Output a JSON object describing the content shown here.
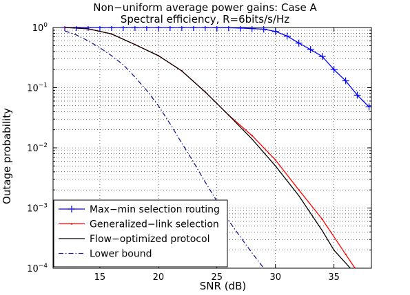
{
  "chart_data": {
    "type": "line",
    "title": "Non−uniform average power gains: Case A",
    "subtitle": "Spectral efficiency, R=6bits/s/Hz",
    "xlabel": "SNR (dB)",
    "ylabel": "Outage probability",
    "xlim": [
      11,
      38.2
    ],
    "ylim": [
      0.0001,
      1
    ],
    "yscale": "log",
    "grid": true,
    "legend_position": "bottom-left",
    "x_ticks": [
      15,
      20,
      25,
      30,
      35
    ],
    "x_tick_labels": [
      "15",
      "20",
      "25",
      "30",
      "35"
    ],
    "y_ticks": [
      0.0001,
      0.001,
      0.01,
      0.1,
      1
    ],
    "y_tick_labels": [
      {
        "base": "10",
        "exp": "−4"
      },
      {
        "base": "10",
        "exp": "−3"
      },
      {
        "base": "10",
        "exp": "−2"
      },
      {
        "base": "10",
        "exp": "−1"
      },
      {
        "base": "10",
        "exp": "0"
      }
    ],
    "series": [
      {
        "name": "Max−min selection routing",
        "color": "#0000ff",
        "line_style": "solid",
        "marker": "plus",
        "x": [
          12,
          13,
          14,
          15,
          16,
          17,
          18,
          19,
          20,
          21,
          22,
          23,
          24,
          25,
          26,
          27,
          28,
          29,
          30,
          31,
          32,
          33,
          34,
          35,
          36,
          37,
          38
        ],
        "y": [
          1,
          1,
          1,
          1,
          1,
          1,
          1,
          1,
          1,
          1,
          1,
          1,
          1,
          0.995,
          0.99,
          0.98,
          0.96,
          0.94,
          0.86,
          0.72,
          0.55,
          0.43,
          0.33,
          0.2,
          0.13,
          0.075,
          0.048
        ]
      },
      {
        "name": "Generalized−link selection",
        "color": "#ff0000",
        "line_style": "solid",
        "marker": "dot",
        "x": [
          12,
          14,
          16,
          18,
          20,
          22,
          24,
          26,
          28,
          30,
          32,
          34,
          36,
          36.8
        ],
        "y": [
          1,
          0.95,
          0.78,
          0.52,
          0.34,
          0.19,
          0.085,
          0.035,
          0.016,
          0.0063,
          0.002,
          0.00065,
          0.00017,
          0.0001
        ]
      },
      {
        "name": "Flow−optimized protocol",
        "color": "#000000",
        "line_style": "solid",
        "marker": "none",
        "x": [
          12,
          14,
          16,
          18,
          20,
          22,
          24,
          26,
          28,
          30,
          32,
          34,
          35,
          36.4
        ],
        "y": [
          1,
          0.95,
          0.78,
          0.52,
          0.34,
          0.19,
          0.085,
          0.035,
          0.014,
          0.005,
          0.0016,
          0.00042,
          0.0002,
          0.0001
        ]
      },
      {
        "name": "Lower bound",
        "color": "#1a1a8c",
        "line_style": "dashdot",
        "marker": "none",
        "x": [
          12,
          13,
          14,
          15,
          16,
          17,
          18,
          19,
          20,
          21,
          22,
          23,
          24,
          25,
          26,
          27,
          28,
          29
        ],
        "y": [
          0.88,
          0.75,
          0.6,
          0.46,
          0.34,
          0.24,
          0.15,
          0.09,
          0.05,
          0.025,
          0.012,
          0.0058,
          0.0027,
          0.0013,
          0.00062,
          0.00033,
          0.00018,
          0.0001
        ]
      }
    ]
  }
}
